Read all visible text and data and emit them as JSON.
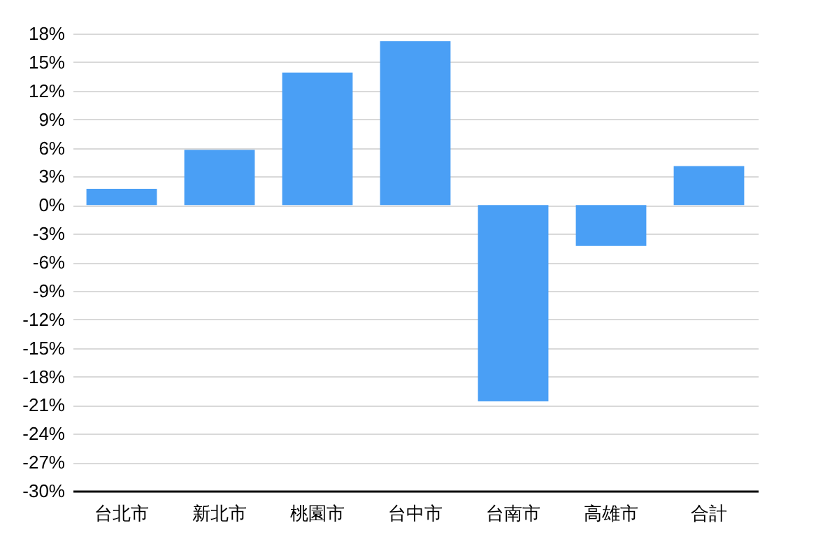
{
  "chart_data": {
    "type": "bar",
    "categories": [
      "台北市",
      "新北市",
      "桃園市",
      "台中市",
      "台南市",
      "高雄市",
      "合計"
    ],
    "values": [
      1.7,
      5.8,
      13.9,
      17.2,
      -20.6,
      -4.3,
      4.1
    ],
    "color": "#4a9ff5",
    "ylim": [
      -30,
      18
    ],
    "yticks": [
      {
        "value": 18,
        "label": "18%"
      },
      {
        "value": 15,
        "label": "15%"
      },
      {
        "value": 12,
        "label": "12%"
      },
      {
        "value": 9,
        "label": "9%"
      },
      {
        "value": 6,
        "label": "6%"
      },
      {
        "value": 3,
        "label": "3%"
      },
      {
        "value": 0,
        "label": "0%"
      },
      {
        "value": -3,
        "label": "-3%"
      },
      {
        "value": -6,
        "label": "-6%"
      },
      {
        "value": -9,
        "label": "-9%"
      },
      {
        "value": -12,
        "label": "-12%"
      },
      {
        "value": -15,
        "label": "-15%"
      },
      {
        "value": -18,
        "label": "-18%"
      },
      {
        "value": -21,
        "label": "-21%"
      },
      {
        "value": -24,
        "label": "-24%"
      },
      {
        "value": -27,
        "label": "-27%"
      },
      {
        "value": -30,
        "label": "-30%"
      }
    ],
    "grid": "y"
  }
}
